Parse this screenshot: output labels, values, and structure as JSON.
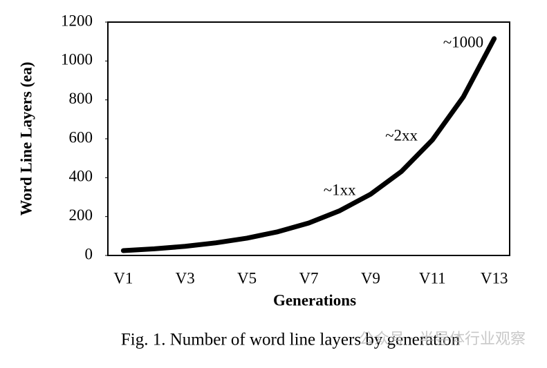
{
  "chart_data": {
    "type": "line",
    "y_label": "Word Line Layers (ea)",
    "x_label": "Generations",
    "caption": "Fig. 1. Number of word line layers by generation",
    "categories": [
      "V1",
      null,
      "V3",
      null,
      "V5",
      null,
      "V7",
      null,
      "V9",
      null,
      "V11",
      null,
      "V13"
    ],
    "series": [
      {
        "name": "Word line layers",
        "color": "#000000",
        "values": [
          25,
          34,
          47,
          65,
          89,
          122,
          167,
          230,
          315,
          432,
          594,
          815,
          1115
        ]
      }
    ],
    "ylim": [
      0,
      1200
    ],
    "yticks": [
      0,
      200,
      400,
      600,
      800,
      1000,
      1200
    ],
    "annotations": [
      {
        "text": "~1xx",
        "category": 7,
        "value": 330
      },
      {
        "text": "~2xx",
        "category": 9,
        "value": 610
      },
      {
        "text": "~1000",
        "category": 11,
        "value": 1090
      }
    ],
    "grid": false
  },
  "watermark": "公众号 · 半导体行业观察"
}
